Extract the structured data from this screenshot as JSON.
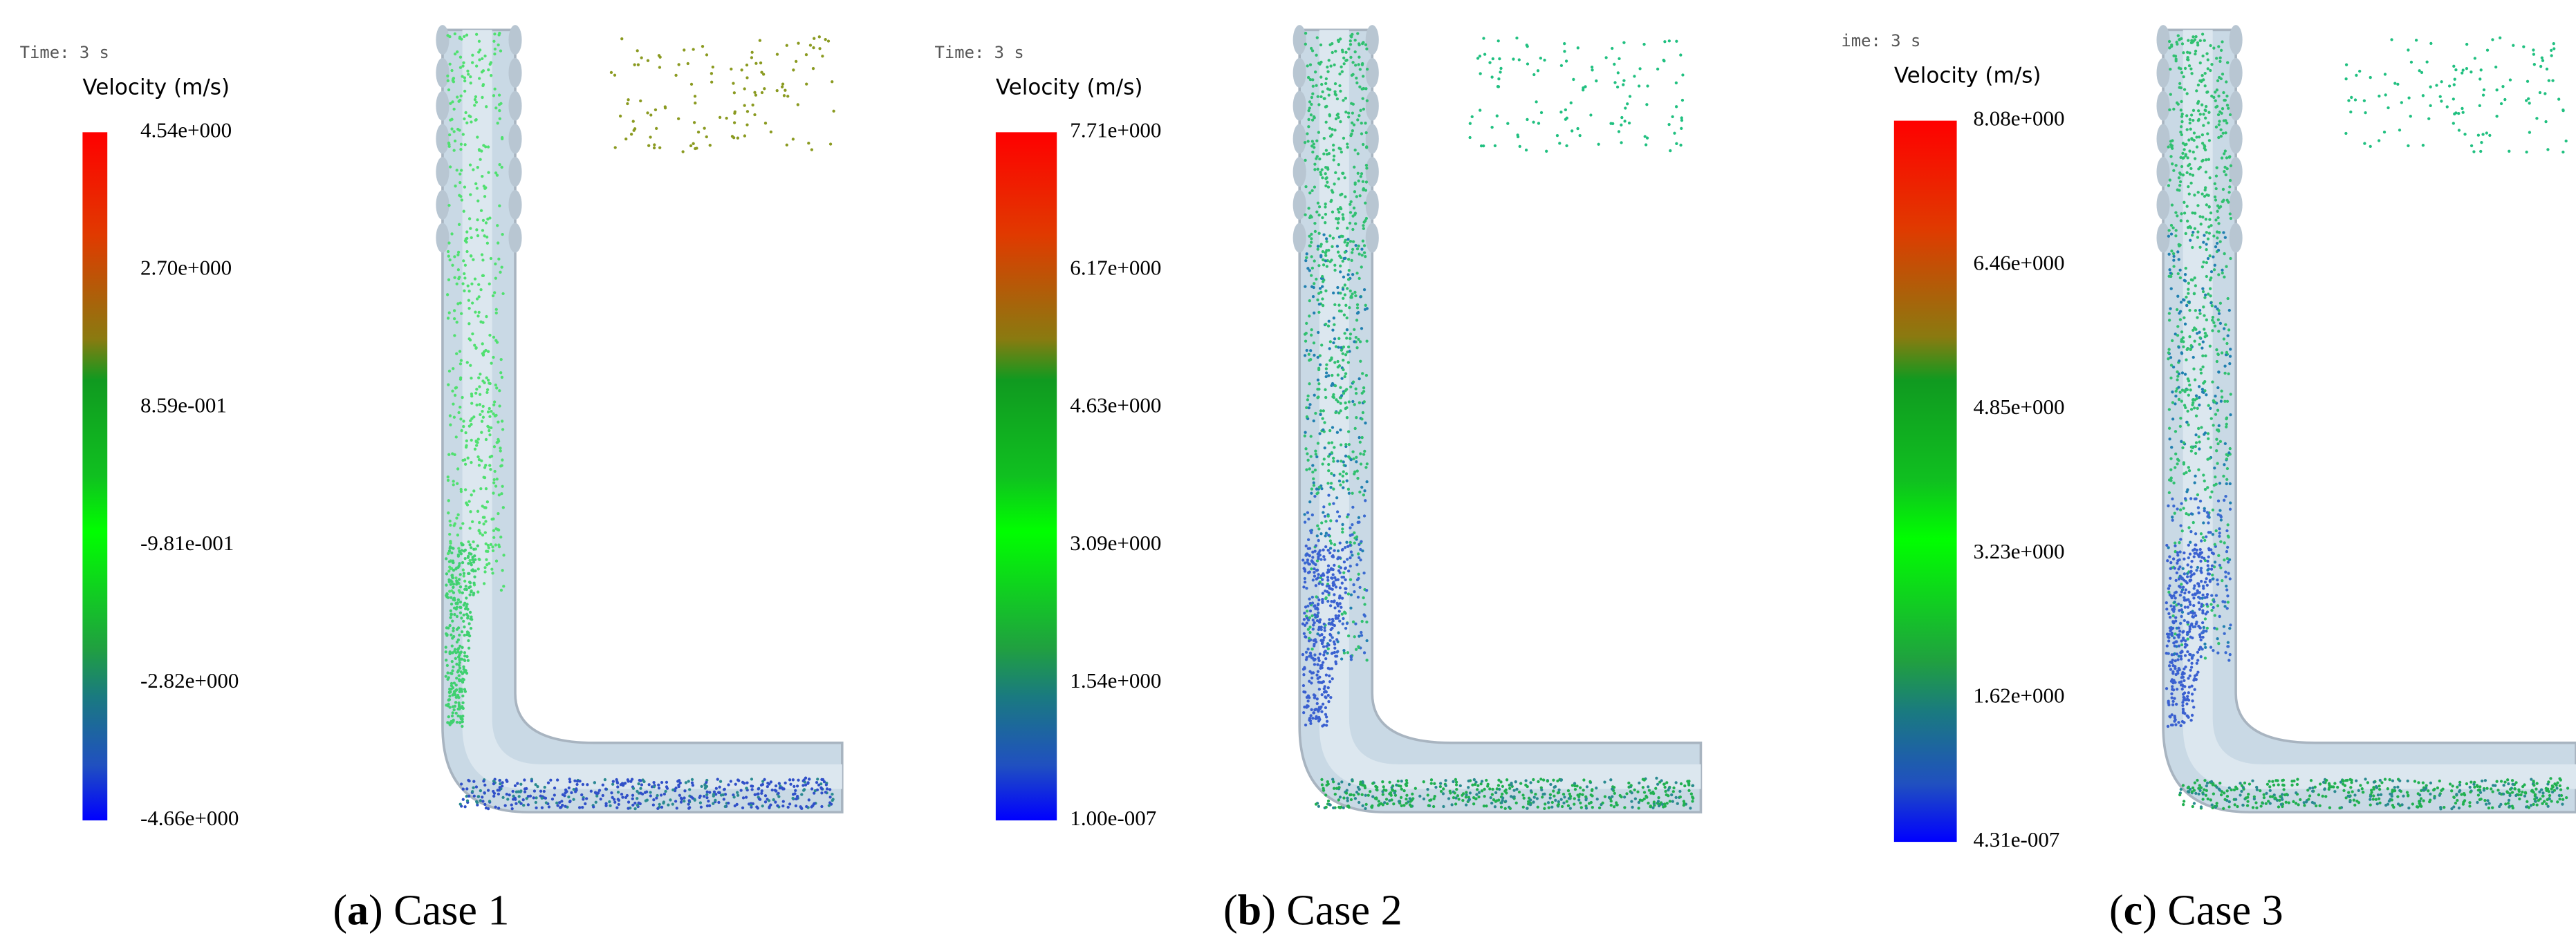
{
  "panels": [
    {
      "time": "Time: 3 s",
      "legend_title": "Velocity (m/s)",
      "ticks": [
        "4.54e+000",
        "2.70e+000",
        "8.59e-001",
        "-9.81e-001",
        "-2.82e+000",
        "-4.66e+000"
      ],
      "caption": {
        "prefix": "(",
        "letter": "a",
        "text": ") Case 1"
      }
    },
    {
      "time": "Time: 3 s",
      "legend_title": "Velocity (m/s)",
      "ticks": [
        "7.71e+000",
        "6.17e+000",
        "4.63e+000",
        "3.09e+000",
        "1.54e+000",
        "1.00e-007"
      ],
      "caption": {
        "prefix": "(",
        "letter": "b",
        "text": ") Case 2"
      }
    },
    {
      "time": "ime: 3 s",
      "legend_title": "Velocity (m/s)",
      "ticks": [
        "8.08e+000",
        "6.46e+000",
        "4.85e+000",
        "3.23e+000",
        "1.62e+000",
        "4.31e-007"
      ],
      "caption": {
        "prefix": "(",
        "letter": "c",
        "text": ") Case 3"
      }
    }
  ]
}
